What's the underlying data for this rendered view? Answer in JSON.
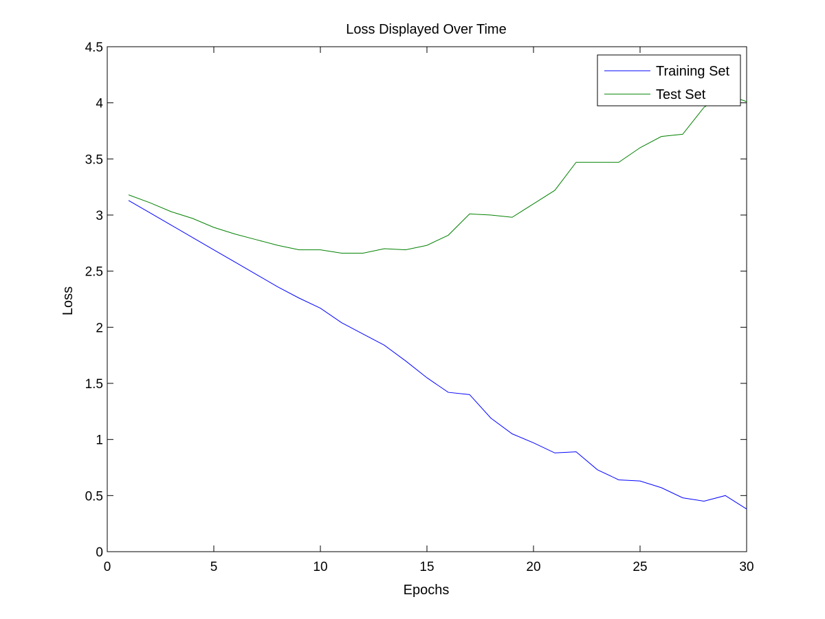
{
  "chart_data": {
    "type": "line",
    "title": "Loss Displayed Over Time",
    "xlabel": "Epochs",
    "ylabel": "Loss",
    "xlim": [
      0,
      30
    ],
    "ylim": [
      0,
      4.5
    ],
    "xticks": [
      0,
      5,
      10,
      15,
      20,
      25,
      30
    ],
    "xtick_labels": [
      "0",
      "5",
      "10",
      "15",
      "20",
      "25",
      "30"
    ],
    "yticks": [
      0,
      0.5,
      1,
      1.5,
      2,
      2.5,
      3,
      3.5,
      4,
      4.5
    ],
    "ytick_labels": [
      "0",
      "0.5",
      "1",
      "1.5",
      "2",
      "2.5",
      "3",
      "3.5",
      "4",
      "4.5"
    ],
    "grid": false,
    "legend_position": "top-right",
    "x": [
      1,
      2,
      3,
      4,
      5,
      6,
      7,
      8,
      9,
      10,
      11,
      12,
      13,
      14,
      15,
      16,
      17,
      18,
      19,
      20,
      21,
      22,
      23,
      24,
      25,
      26,
      27,
      28,
      29,
      30
    ],
    "series": [
      {
        "name": "Training Set",
        "color": "#0000ff",
        "values": [
          3.13,
          3.02,
          2.91,
          2.8,
          2.69,
          2.58,
          2.47,
          2.36,
          2.26,
          2.17,
          2.04,
          1.94,
          1.84,
          1.7,
          1.55,
          1.42,
          1.4,
          1.19,
          1.05,
          0.97,
          0.88,
          0.89,
          0.73,
          0.64,
          0.63,
          0.57,
          0.48,
          0.45,
          0.5,
          0.38
        ]
      },
      {
        "name": "Test Set",
        "color": "#008000",
        "values": [
          3.18,
          3.11,
          3.03,
          2.97,
          2.89,
          2.83,
          2.78,
          2.73,
          2.69,
          2.69,
          2.66,
          2.66,
          2.7,
          2.69,
          2.73,
          2.82,
          3.01,
          3.0,
          2.98,
          3.1,
          3.22,
          3.47,
          3.47,
          3.47,
          3.6,
          3.7,
          3.72,
          3.96,
          4.08,
          4.01
        ]
      }
    ]
  }
}
